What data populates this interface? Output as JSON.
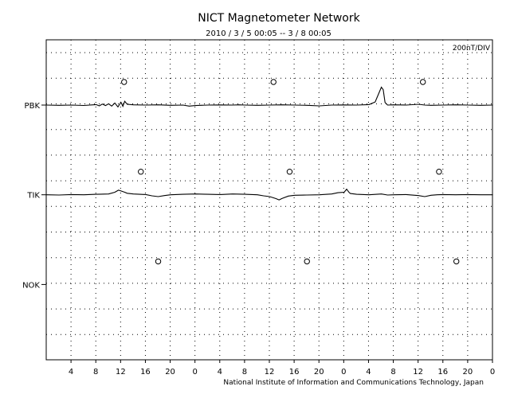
{
  "chart_data": {
    "type": "line",
    "title": "NICT Magnetometer Network",
    "subtitle": "2010 / 3 / 5   00:05 --  3 / 8   00:05",
    "scale_label": "200nT/DIV",
    "footer": "National Institute of Information and Communications Technology, Japan",
    "x_ticks": [
      "4",
      "8",
      "12",
      "16",
      "20",
      "0",
      "4",
      "8",
      "12",
      "16",
      "20",
      "0",
      "4",
      "8",
      "12",
      "16",
      "20",
      "0"
    ],
    "x_range_hours": [
      0,
      72
    ],
    "grid": "dotted",
    "stations": [
      {
        "name": "PBK",
        "label_shown": true,
        "baseline_nT": 0,
        "midnight_markers_hours": [
          12.5,
          36.6,
          60.7
        ],
        "points": [
          [
            0,
            0
          ],
          [
            2,
            -2
          ],
          [
            4,
            0
          ],
          [
            6,
            -3
          ],
          [
            8,
            4
          ],
          [
            8.5,
            -6
          ],
          [
            9,
            8
          ],
          [
            9.5,
            -4
          ],
          [
            10,
            10
          ],
          [
            10.5,
            -8
          ],
          [
            11,
            16
          ],
          [
            11.5,
            -14
          ],
          [
            12,
            22
          ],
          [
            12.3,
            -10
          ],
          [
            12.6,
            30
          ],
          [
            13,
            6
          ],
          [
            14,
            2
          ],
          [
            16,
            0
          ],
          [
            18,
            2
          ],
          [
            20,
            -2
          ],
          [
            22,
            0
          ],
          [
            23,
            -8
          ],
          [
            24,
            -4
          ],
          [
            26,
            0
          ],
          [
            28,
            1
          ],
          [
            30,
            0
          ],
          [
            31,
            2
          ],
          [
            32,
            0
          ],
          [
            34,
            -2
          ],
          [
            36,
            0
          ],
          [
            38,
            2
          ],
          [
            40,
            0
          ],
          [
            42,
            -2
          ],
          [
            44,
            -6
          ],
          [
            46,
            0
          ],
          [
            48,
            1
          ],
          [
            50,
            0
          ],
          [
            52,
            4
          ],
          [
            53,
            24
          ],
          [
            54,
            140
          ],
          [
            54.3,
            120
          ],
          [
            54.6,
            20
          ],
          [
            55,
            0
          ],
          [
            56,
            2
          ],
          [
            58,
            0
          ],
          [
            60,
            6
          ],
          [
            61,
            0
          ],
          [
            62,
            -2
          ],
          [
            64,
            0
          ],
          [
            66,
            2
          ],
          [
            68,
            0
          ],
          [
            70,
            -2
          ],
          [
            72,
            0
          ]
        ]
      },
      {
        "name": "TIK",
        "label_shown": true,
        "baseline_nT": -700,
        "midnight_markers_hours": [
          15.2,
          39.2,
          63.3
        ],
        "points": [
          [
            0,
            0
          ],
          [
            2,
            -2
          ],
          [
            4,
            2
          ],
          [
            6,
            0
          ],
          [
            8,
            4
          ],
          [
            10,
            6
          ],
          [
            11,
            20
          ],
          [
            11.6,
            36
          ],
          [
            12,
            30
          ],
          [
            12.6,
            20
          ],
          [
            13,
            12
          ],
          [
            14,
            6
          ],
          [
            16,
            2
          ],
          [
            17,
            -8
          ],
          [
            18,
            -14
          ],
          [
            19,
            -6
          ],
          [
            20,
            0
          ],
          [
            22,
            4
          ],
          [
            24,
            6
          ],
          [
            26,
            4
          ],
          [
            28,
            2
          ],
          [
            30,
            6
          ],
          [
            32,
            4
          ],
          [
            34,
            0
          ],
          [
            35,
            -8
          ],
          [
            36,
            -14
          ],
          [
            37,
            -30
          ],
          [
            37.5,
            -40
          ],
          [
            38,
            -28
          ],
          [
            39,
            -10
          ],
          [
            40,
            -4
          ],
          [
            42,
            -2
          ],
          [
            44,
            0
          ],
          [
            46,
            6
          ],
          [
            47,
            16
          ],
          [
            48,
            20
          ],
          [
            48.4,
            44
          ],
          [
            48.8,
            18
          ],
          [
            49,
            10
          ],
          [
            50,
            4
          ],
          [
            52,
            0
          ],
          [
            54,
            6
          ],
          [
            55,
            -2
          ],
          [
            56,
            0
          ],
          [
            58,
            2
          ],
          [
            60,
            -6
          ],
          [
            61,
            -14
          ],
          [
            62,
            -4
          ],
          [
            63,
            0
          ],
          [
            64,
            2
          ],
          [
            66,
            0
          ],
          [
            68,
            2
          ],
          [
            70,
            0
          ],
          [
            72,
            0
          ]
        ]
      },
      {
        "name": "NOK",
        "label_shown": true,
        "baseline_nT": -1400,
        "midnight_markers_hours": [
          18.0,
          42.0,
          66.1
        ],
        "points": []
      }
    ]
  }
}
